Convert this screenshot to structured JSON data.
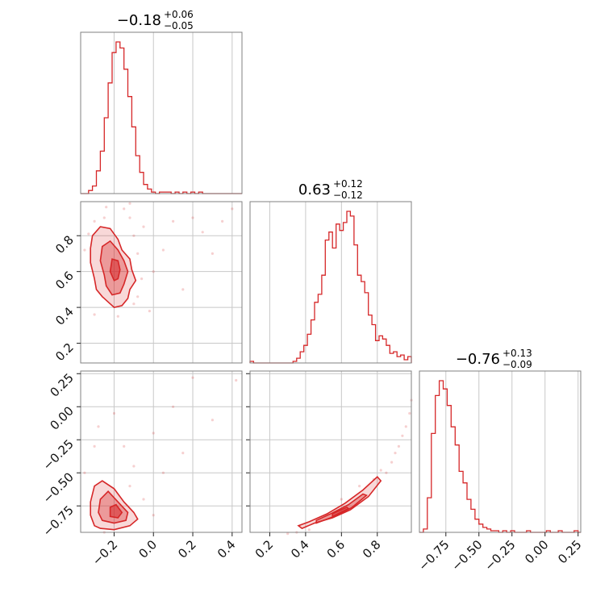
{
  "colors": {
    "series": "#d62728",
    "grid": "#c8c8c8",
    "frame": "#808080"
  },
  "chart_data": {
    "type": "corner",
    "grid": true,
    "parameters": [
      {
        "index": 0,
        "median": -0.18,
        "plus": "+0.06",
        "minus": "−0.05",
        "median_label": "−0.18",
        "range": [
          -0.37,
          0.45
        ]
      },
      {
        "index": 1,
        "median": 0.63,
        "plus": "+0.12",
        "minus": "−0.12",
        "median_label": "0.63",
        "range": [
          0.09,
          0.99
        ]
      },
      {
        "index": 2,
        "median": -0.76,
        "plus": "+0.13",
        "minus": "−0.09",
        "median_label": "−0.76",
        "range": [
          -0.95,
          0.27
        ]
      }
    ],
    "ticks": {
      "p0": [
        {
          "v": -0.2,
          "label": "−0.2"
        },
        {
          "v": 0.0,
          "label": "0.0"
        },
        {
          "v": 0.2,
          "label": "0.2"
        },
        {
          "v": 0.4,
          "label": "0.4"
        }
      ],
      "p1": [
        {
          "v": 0.2,
          "label": "0.2"
        },
        {
          "v": 0.4,
          "label": "0.4"
        },
        {
          "v": 0.6,
          "label": "0.6"
        },
        {
          "v": 0.8,
          "label": "0.8"
        }
      ],
      "p2": [
        {
          "v": -0.75,
          "label": "−0.75"
        },
        {
          "v": -0.5,
          "label": "−0.50"
        },
        {
          "v": -0.25,
          "label": "−0.25"
        },
        {
          "v": 0.0,
          "label": "0.00"
        },
        {
          "v": 0.25,
          "label": "0.25"
        }
      ]
    },
    "histograms": [
      {
        "param": 0,
        "bin_edges": [
          -0.37,
          -0.35,
          -0.33,
          -0.31,
          -0.29,
          -0.27,
          -0.25,
          -0.23,
          -0.21,
          -0.19,
          -0.17,
          -0.15,
          -0.13,
          -0.11,
          -0.09,
          -0.07,
          -0.05,
          -0.03,
          -0.01,
          0.01,
          0.03,
          0.05,
          0.07,
          0.09,
          0.11,
          0.13,
          0.15,
          0.17,
          0.19,
          0.21,
          0.23,
          0.25,
          0.27,
          0.29,
          0.31,
          0.33,
          0.35,
          0.37,
          0.39,
          0.41,
          0.43,
          0.45
        ],
        "counts": [
          0,
          0,
          2,
          5,
          15,
          28,
          50,
          73,
          93,
          100,
          96,
          82,
          64,
          44,
          25,
          14,
          6,
          3,
          1,
          0,
          1,
          1,
          1,
          0,
          1,
          0,
          1,
          0,
          1,
          0,
          1,
          0,
          0,
          0,
          0,
          0,
          0,
          0,
          0,
          0,
          0
        ]
      },
      {
        "param": 1,
        "bin_edges": [
          0.09,
          0.11,
          0.13,
          0.15,
          0.17,
          0.19,
          0.21,
          0.23,
          0.25,
          0.27,
          0.29,
          0.31,
          0.33,
          0.35,
          0.37,
          0.39,
          0.41,
          0.43,
          0.45,
          0.47,
          0.49,
          0.51,
          0.53,
          0.55,
          0.57,
          0.59,
          0.61,
          0.63,
          0.65,
          0.67,
          0.69,
          0.71,
          0.73,
          0.75,
          0.77,
          0.79,
          0.81,
          0.83,
          0.85,
          0.87,
          0.89,
          0.91,
          0.93,
          0.95,
          0.97,
          0.99
        ],
        "counts": [
          1,
          0,
          0,
          0,
          0,
          0,
          0,
          0,
          0,
          0,
          0,
          0,
          1,
          3,
          7,
          11,
          18,
          27,
          38,
          43,
          55,
          77,
          82,
          72,
          87,
          83,
          88,
          95,
          92,
          74,
          55,
          51,
          44,
          30,
          24,
          14,
          17,
          15,
          11,
          6,
          7,
          4,
          5,
          2,
          4
        ]
      },
      {
        "param": 2,
        "bin_edges": [
          -0.95,
          -0.92,
          -0.89,
          -0.86,
          -0.83,
          -0.8,
          -0.77,
          -0.74,
          -0.71,
          -0.68,
          -0.65,
          -0.62,
          -0.59,
          -0.56,
          -0.53,
          -0.5,
          -0.47,
          -0.44,
          -0.41,
          -0.38,
          -0.35,
          -0.32,
          -0.29,
          -0.26,
          -0.23,
          -0.2,
          -0.17,
          -0.14,
          -0.11,
          -0.08,
          -0.05,
          -0.02,
          0.01,
          0.04,
          0.07,
          0.1,
          0.13,
          0.16,
          0.19,
          0.22,
          0.25,
          0.27
        ],
        "counts": [
          0,
          2,
          21,
          60,
          83,
          92,
          87,
          77,
          64,
          53,
          37,
          30,
          20,
          14,
          8,
          5,
          3,
          2,
          1,
          1,
          0,
          1,
          0,
          1,
          0,
          0,
          0,
          1,
          0,
          0,
          0,
          0,
          1,
          0,
          0,
          1,
          0,
          0,
          0,
          1,
          0
        ]
      }
    ],
    "joint": [
      {
        "x_param": 0,
        "y_param": 1,
        "contours": [
          [
            [
              -0.3,
              0.56
            ],
            [
              -0.29,
              0.5
            ],
            [
              -0.26,
              0.46
            ],
            [
              -0.22,
              0.42
            ],
            [
              -0.2,
              0.4
            ],
            [
              -0.16,
              0.41
            ],
            [
              -0.13,
              0.45
            ],
            [
              -0.12,
              0.5
            ],
            [
              -0.09,
              0.55
            ],
            [
              -0.11,
              0.61
            ],
            [
              -0.12,
              0.67
            ],
            [
              -0.16,
              0.72
            ],
            [
              -0.18,
              0.78
            ],
            [
              -0.22,
              0.84
            ],
            [
              -0.27,
              0.85
            ],
            [
              -0.31,
              0.8
            ],
            [
              -0.32,
              0.73
            ],
            [
              -0.32,
              0.65
            ]
          ],
          [
            [
              -0.25,
              0.58
            ],
            [
              -0.24,
              0.52
            ],
            [
              -0.21,
              0.47
            ],
            [
              -0.17,
              0.48
            ],
            [
              -0.15,
              0.53
            ],
            [
              -0.13,
              0.6
            ],
            [
              -0.15,
              0.66
            ],
            [
              -0.18,
              0.72
            ],
            [
              -0.22,
              0.77
            ],
            [
              -0.26,
              0.74
            ],
            [
              -0.27,
              0.66
            ]
          ],
          [
            [
              -0.22,
              0.6
            ],
            [
              -0.2,
              0.55
            ],
            [
              -0.18,
              0.56
            ],
            [
              -0.17,
              0.61
            ],
            [
              -0.18,
              0.66
            ],
            [
              -0.21,
              0.67
            ]
          ]
        ],
        "points": [
          [
            -0.35,
            0.72
          ],
          [
            -0.33,
            0.81
          ],
          [
            -0.3,
            0.88
          ],
          [
            -0.25,
            0.9
          ],
          [
            -0.15,
            0.95
          ],
          [
            -0.12,
            0.98
          ],
          [
            -0.1,
            0.8
          ],
          [
            -0.06,
            0.56
          ],
          [
            -0.08,
            0.46
          ],
          [
            -0.1,
            0.42
          ],
          [
            -0.05,
            0.85
          ],
          [
            0.05,
            0.72
          ],
          [
            0.1,
            0.88
          ],
          [
            0.2,
            0.9
          ],
          [
            0.25,
            0.82
          ],
          [
            0.35,
            0.88
          ],
          [
            0.0,
            0.6
          ],
          [
            -0.02,
            0.38
          ],
          [
            -0.3,
            0.36
          ],
          [
            -0.18,
            0.35
          ],
          [
            -0.12,
            0.9
          ],
          [
            0.4,
            0.95
          ],
          [
            -0.24,
            0.96
          ],
          [
            0.15,
            0.5
          ],
          [
            0.3,
            0.7
          ],
          [
            -0.08,
            0.7
          ]
        ]
      },
      {
        "x_param": 0,
        "y_param": 2,
        "contours": [
          [
            [
              -0.3,
              -0.9
            ],
            [
              -0.27,
              -0.92
            ],
            [
              -0.2,
              -0.93
            ],
            [
              -0.12,
              -0.9
            ],
            [
              -0.08,
              -0.85
            ],
            [
              -0.1,
              -0.8
            ],
            [
              -0.15,
              -0.72
            ],
            [
              -0.2,
              -0.62
            ],
            [
              -0.26,
              -0.56
            ],
            [
              -0.3,
              -0.6
            ],
            [
              -0.32,
              -0.72
            ],
            [
              -0.32,
              -0.82
            ]
          ],
          [
            [
              -0.26,
              -0.86
            ],
            [
              -0.2,
              -0.88
            ],
            [
              -0.14,
              -0.86
            ],
            [
              -0.13,
              -0.8
            ],
            [
              -0.18,
              -0.72
            ],
            [
              -0.23,
              -0.64
            ],
            [
              -0.27,
              -0.7
            ],
            [
              -0.28,
              -0.8
            ]
          ],
          [
            [
              -0.22,
              -0.83
            ],
            [
              -0.18,
              -0.84
            ],
            [
              -0.16,
              -0.8
            ],
            [
              -0.19,
              -0.74
            ],
            [
              -0.22,
              -0.76
            ]
          ]
        ],
        "points": [
          [
            -0.35,
            -0.5
          ],
          [
            -0.3,
            -0.3
          ],
          [
            -0.28,
            -0.15
          ],
          [
            -0.2,
            -0.05
          ],
          [
            -0.15,
            -0.3
          ],
          [
            -0.1,
            -0.45
          ],
          [
            0.0,
            -0.2
          ],
          [
            0.1,
            0.0
          ],
          [
            0.2,
            0.22
          ],
          [
            0.3,
            -0.1
          ],
          [
            0.42,
            0.2
          ],
          [
            -0.05,
            -0.7
          ],
          [
            0.05,
            -0.5
          ],
          [
            0.15,
            -0.35
          ],
          [
            -0.25,
            -0.95
          ],
          [
            0.0,
            -0.82
          ],
          [
            -0.12,
            -0.6
          ]
        ]
      },
      {
        "x_param": 1,
        "y_param": 2,
        "contours": [
          [
            [
              0.38,
              -0.92
            ],
            [
              0.45,
              -0.88
            ],
            [
              0.55,
              -0.84
            ],
            [
              0.65,
              -0.78
            ],
            [
              0.75,
              -0.68
            ],
            [
              0.82,
              -0.56
            ],
            [
              0.8,
              -0.53
            ],
            [
              0.72,
              -0.63
            ],
            [
              0.62,
              -0.73
            ],
            [
              0.52,
              -0.81
            ],
            [
              0.42,
              -0.87
            ],
            [
              0.36,
              -0.9
            ]
          ],
          [
            [
              0.46,
              -0.88
            ],
            [
              0.56,
              -0.83
            ],
            [
              0.66,
              -0.76
            ],
            [
              0.74,
              -0.67
            ],
            [
              0.72,
              -0.66
            ],
            [
              0.64,
              -0.74
            ],
            [
              0.54,
              -0.81
            ],
            [
              0.46,
              -0.86
            ]
          ],
          [
            [
              0.55,
              -0.83
            ],
            [
              0.64,
              -0.77
            ],
            [
              0.63,
              -0.76
            ],
            [
              0.55,
              -0.81
            ]
          ]
        ],
        "points": [
          [
            0.85,
            -0.5
          ],
          [
            0.88,
            -0.42
          ],
          [
            0.9,
            -0.35
          ],
          [
            0.92,
            -0.3
          ],
          [
            0.94,
            -0.22
          ],
          [
            0.96,
            -0.15
          ],
          [
            0.98,
            -0.05
          ],
          [
            0.99,
            0.05
          ],
          [
            0.35,
            -0.95
          ],
          [
            0.3,
            -0.96
          ],
          [
            0.42,
            -0.93
          ],
          [
            0.6,
            -0.7
          ],
          [
            0.7,
            -0.6
          ],
          [
            0.78,
            -0.55
          ],
          [
            0.82,
            -0.48
          ]
        ]
      }
    ]
  }
}
